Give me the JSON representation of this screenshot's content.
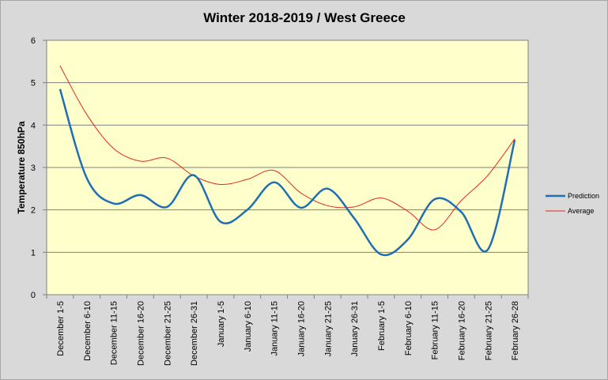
{
  "chart_data": {
    "type": "line",
    "title": "Winter 2018-2019 / West Greece",
    "xlabel": "",
    "ylabel": "Temperature 850hPa",
    "ylim": [
      0,
      6
    ],
    "yticks": [
      0,
      1,
      2,
      3,
      4,
      5,
      6
    ],
    "grid": true,
    "legend_position": "right",
    "categories": [
      "December 1-5",
      "December 6-10",
      "December 11-15",
      "December 16-20",
      "December 21-25",
      "December 26-31",
      "January 1-5",
      "January 6-10",
      "January 11-15",
      "January 16-20",
      "January 21-25",
      "January 26-31",
      "February 1-5",
      "February 6-10",
      "February 11-15",
      "February 16-20",
      "February 21-25",
      "February 26-28"
    ],
    "series": [
      {
        "name": "Prediction",
        "color": "#1f6fb2",
        "values": [
          4.85,
          2.75,
          2.15,
          2.35,
          2.07,
          2.82,
          1.72,
          2.0,
          2.65,
          2.05,
          2.5,
          1.8,
          0.95,
          1.3,
          2.25,
          1.95,
          1.07,
          3.65
        ]
      },
      {
        "name": "Average",
        "color": "#e8251c",
        "values": [
          5.4,
          4.25,
          3.45,
          3.15,
          3.22,
          2.8,
          2.6,
          2.72,
          2.93,
          2.4,
          2.1,
          2.07,
          2.28,
          1.97,
          1.53,
          2.22,
          2.82,
          3.68
        ]
      }
    ]
  }
}
